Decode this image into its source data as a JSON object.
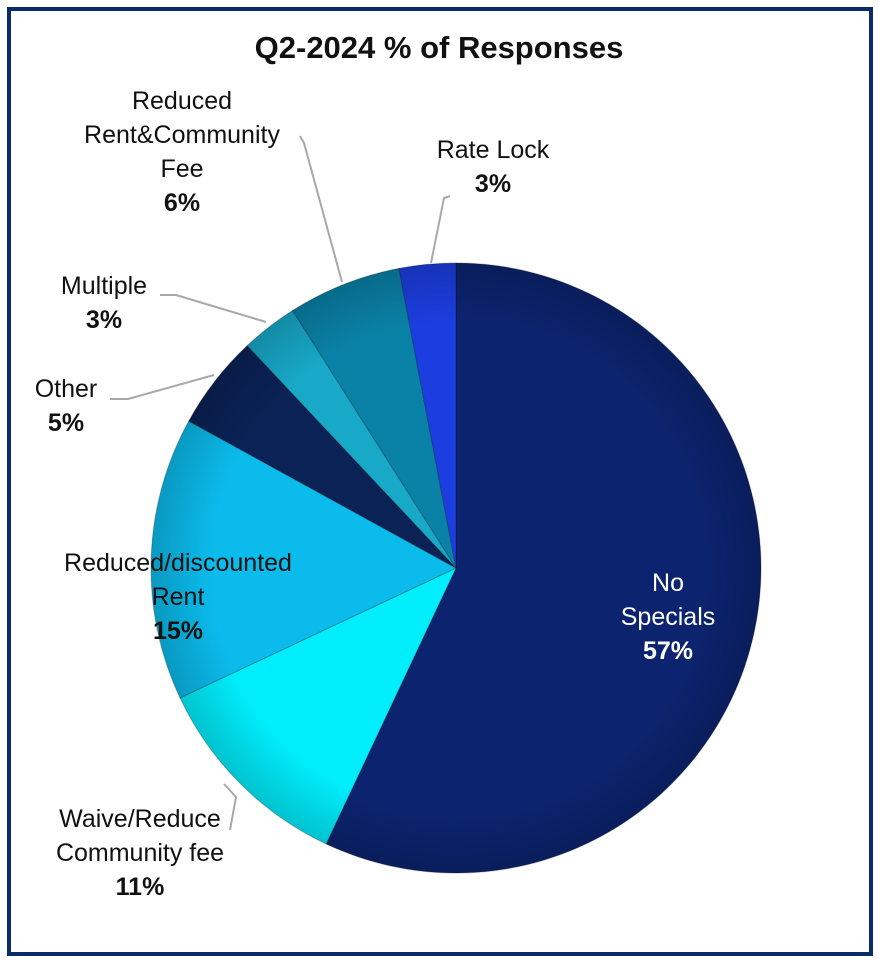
{
  "chart_data": {
    "type": "pie",
    "title": "Q2-2024 % of Responses",
    "start": "top",
    "direction": "clockwise",
    "slices": [
      {
        "name": "No Specials",
        "lines": [
          "No",
          "Specials"
        ],
        "value": 57,
        "pct": "57%",
        "color": "#0c2470"
      },
      {
        "name": "Waive/Reduce Community fee",
        "lines": [
          "Waive/Reduce",
          "Community fee"
        ],
        "value": 11,
        "pct": "11%",
        "color": "#00eefc"
      },
      {
        "name": "Reduced/discounted Rent",
        "lines": [
          "Reduced/discounted",
          "Rent"
        ],
        "value": 15,
        "pct": "15%",
        "color": "#0bbbec"
      },
      {
        "name": "Other",
        "lines": [
          "Other"
        ],
        "value": 5,
        "pct": "5%",
        "color": "#0a2256"
      },
      {
        "name": "Multiple",
        "lines": [
          "Multiple"
        ],
        "value": 3,
        "pct": "3%",
        "color": "#18a9c9"
      },
      {
        "name": "Reduced Rent&Community Fee",
        "lines": [
          "Reduced",
          "Rent&Community",
          "Fee"
        ],
        "value": 6,
        "pct": "6%",
        "color": "#0a82a8"
      },
      {
        "name": "Rate Lock",
        "lines": [
          "Rate Lock"
        ],
        "value": 3,
        "pct": "3%",
        "color": "#1c3ee0"
      }
    ]
  }
}
